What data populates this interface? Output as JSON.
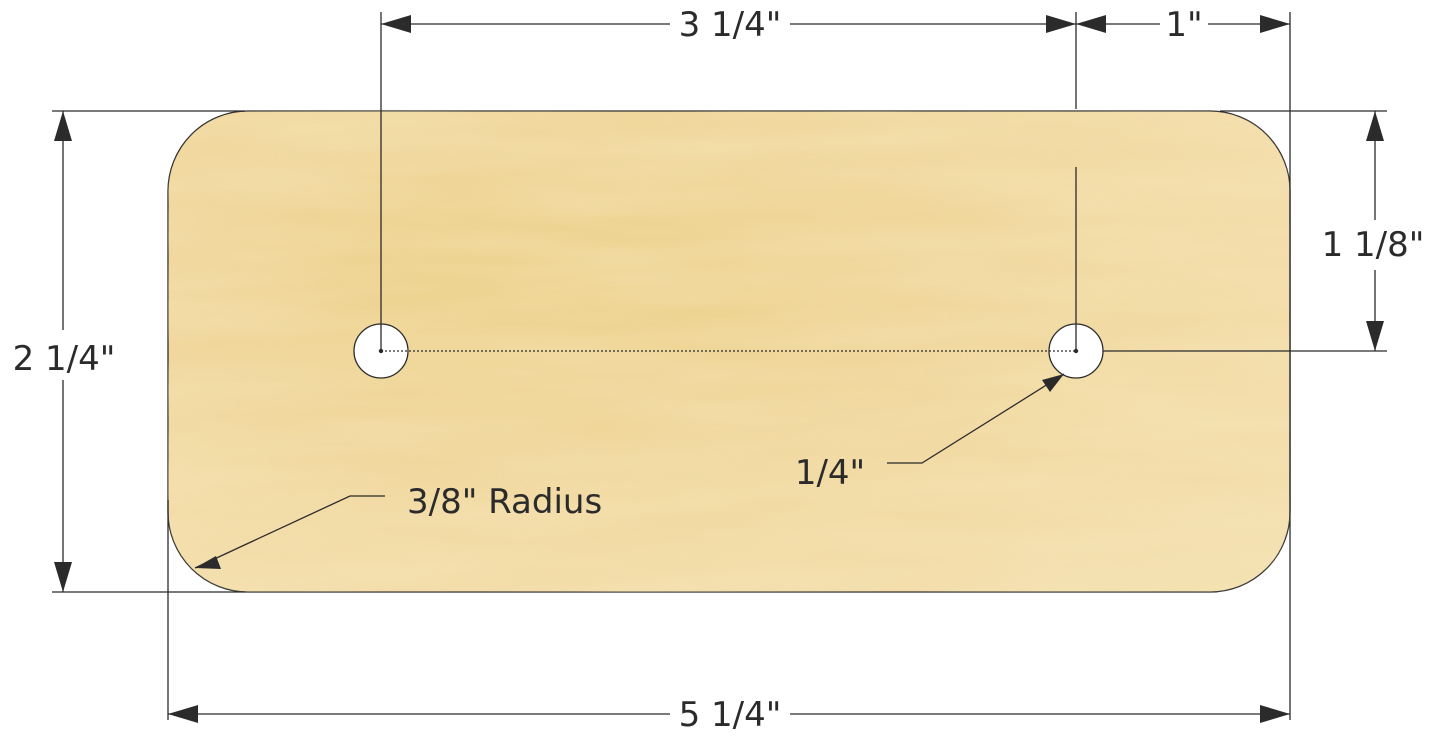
{
  "dimensions": {
    "hole_spacing": "3 1/4\"",
    "edge_offset": "1\"",
    "hole_height": "1 1/8\"",
    "overall_height": "2 1/4\"",
    "hole_diameter": "1/4\"",
    "corner_radius": "3/8\" Radius",
    "overall_width": "5 1/4\""
  },
  "colors": {
    "wood_light": "#f3deac",
    "wood_mid": "#eccf86",
    "wood_dark": "#e3bd6a",
    "line": "#2b2b2b",
    "hole": "#ffffff"
  }
}
